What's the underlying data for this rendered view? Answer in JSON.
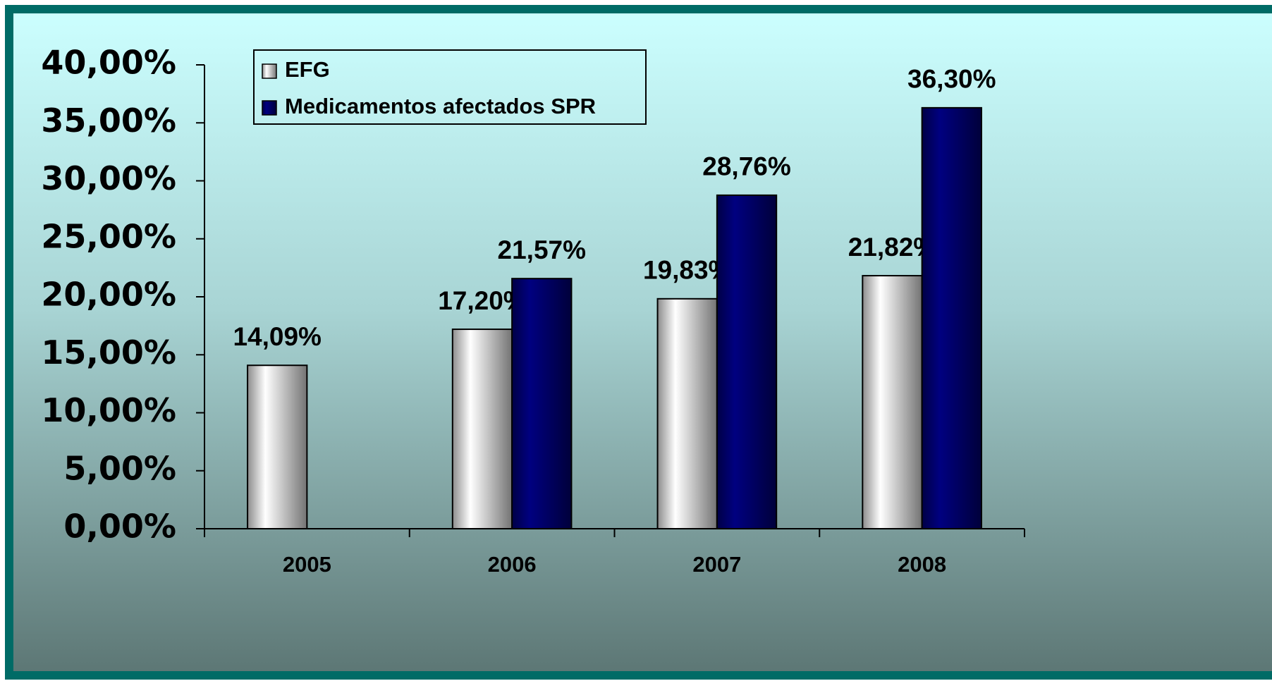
{
  "chart_data": {
    "type": "bar",
    "categories": [
      "2005",
      "2006",
      "2007",
      "2008"
    ],
    "series": [
      {
        "name": "EFG",
        "color": "#ffffff",
        "values": [
          14.09,
          17.2,
          19.83,
          21.82
        ],
        "value_labels": [
          "14,09%",
          "17,20%",
          "19,83%",
          "21,82%"
        ]
      },
      {
        "name": "Medicamentos afectados SPR",
        "color": "#000080",
        "values": [
          null,
          21.57,
          28.76,
          36.3
        ],
        "value_labels": [
          null,
          "21,57%",
          "28,76%",
          "36,30%"
        ]
      }
    ],
    "ylim": [
      0,
      40
    ],
    "yticks": [
      {
        "value": 0,
        "label": "0,00%"
      },
      {
        "value": 5,
        "label": "5,00%"
      },
      {
        "value": 10,
        "label": "10,00%"
      },
      {
        "value": 15,
        "label": "15,00%"
      },
      {
        "value": 20,
        "label": "20,00%"
      },
      {
        "value": 25,
        "label": "25,00%"
      },
      {
        "value": 30,
        "label": "30,00%"
      },
      {
        "value": 35,
        "label": "35,00%"
      },
      {
        "value": 40,
        "label": "40,00%"
      }
    ],
    "legend": "top-left"
  }
}
